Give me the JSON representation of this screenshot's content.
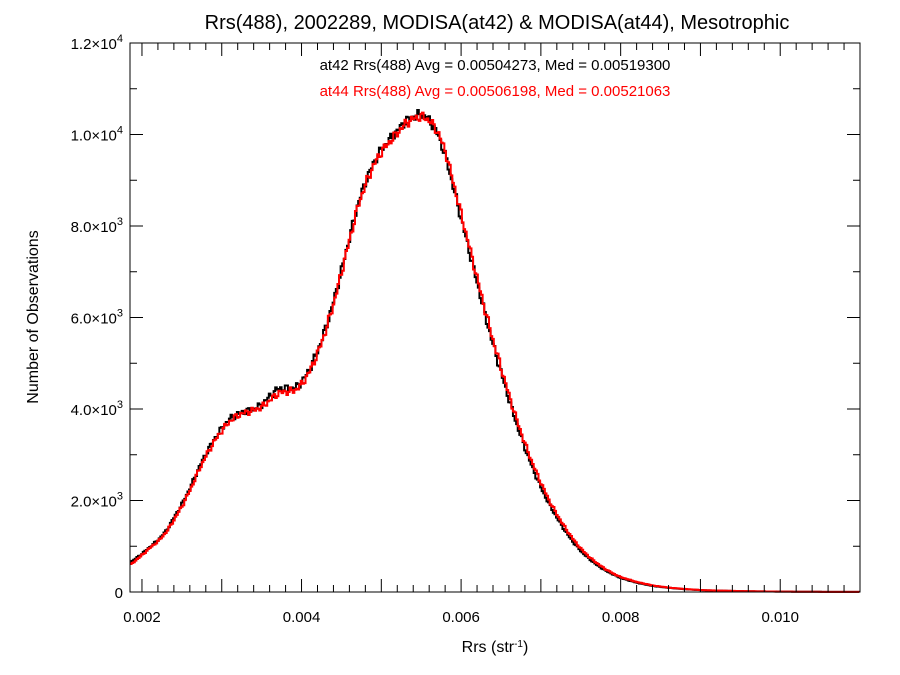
{
  "chart_data": {
    "type": "line",
    "title": "Rrs(488), 2002289, MODISA(at42) & MODISA(at44), Mesotrophic",
    "xlabel": "Rrs (str",
    "xlabel_sup": "-1",
    "xlabel_close": ")",
    "ylabel": "Number of Observations",
    "xlim": [
      0.00185,
      0.011
    ],
    "ylim": [
      0,
      12000
    ],
    "x_ticks": [
      {
        "value": 0.002,
        "label": "0.002"
      },
      {
        "value": 0.004,
        "label": "0.004"
      },
      {
        "value": 0.006,
        "label": "0.006"
      },
      {
        "value": 0.008,
        "label": "0.008"
      },
      {
        "value": 0.01,
        "label": "0.010"
      }
    ],
    "y_ticks": [
      {
        "value": 0,
        "mant": "0",
        "exp": ""
      },
      {
        "value": 2000,
        "mant": "2.0×10",
        "exp": "3"
      },
      {
        "value": 4000,
        "mant": "4.0×10",
        "exp": "3"
      },
      {
        "value": 6000,
        "mant": "6.0×10",
        "exp": "3"
      },
      {
        "value": 8000,
        "mant": "8.0×10",
        "exp": "3"
      },
      {
        "value": 10000,
        "mant": "1.0×10",
        "exp": "4"
      },
      {
        "value": 12000,
        "mant": "1.2×10",
        "exp": "4"
      }
    ],
    "annotations": [
      {
        "text": "at42 Rrs(488) Avg = 0.00504273, Med = 0.00519300",
        "color": "#000000"
      },
      {
        "text": "at44 Rrs(488) Avg = 0.00506198, Med = 0.00521063",
        "color": "#ff0000"
      }
    ],
    "series": [
      {
        "color": "#000000",
        "style": "step",
        "points": [
          [
            0.00185,
            650
          ],
          [
            0.002,
            850
          ],
          [
            0.0021,
            1000
          ],
          [
            0.0022,
            1150
          ],
          [
            0.0023,
            1350
          ],
          [
            0.0024,
            1650
          ],
          [
            0.0025,
            1950
          ],
          [
            0.0026,
            2300
          ],
          [
            0.0027,
            2700
          ],
          [
            0.0028,
            3050
          ],
          [
            0.0029,
            3350
          ],
          [
            0.003,
            3600
          ],
          [
            0.0031,
            3800
          ],
          [
            0.0032,
            3900
          ],
          [
            0.0033,
            3950
          ],
          [
            0.0034,
            4000
          ],
          [
            0.0035,
            4100
          ],
          [
            0.0036,
            4300
          ],
          [
            0.0037,
            4450
          ],
          [
            0.0038,
            4450
          ],
          [
            0.0039,
            4450
          ],
          [
            0.004,
            4600
          ],
          [
            0.0041,
            4900
          ],
          [
            0.0042,
            5300
          ],
          [
            0.0043,
            5800
          ],
          [
            0.0044,
            6400
          ],
          [
            0.0045,
            7100
          ],
          [
            0.0046,
            7800
          ],
          [
            0.0047,
            8500
          ],
          [
            0.0048,
            9000
          ],
          [
            0.0049,
            9400
          ],
          [
            0.005,
            9700
          ],
          [
            0.0051,
            9900
          ],
          [
            0.0052,
            10100
          ],
          [
            0.0053,
            10300
          ],
          [
            0.0054,
            10400
          ],
          [
            0.0055,
            10450
          ],
          [
            0.0056,
            10300
          ],
          [
            0.0057,
            10000
          ],
          [
            0.0058,
            9500
          ],
          [
            0.0059,
            8800
          ],
          [
            0.006,
            8100
          ],
          [
            0.0061,
            7400
          ],
          [
            0.0062,
            6700
          ],
          [
            0.0063,
            6000
          ],
          [
            0.0064,
            5350
          ],
          [
            0.0065,
            4750
          ],
          [
            0.0066,
            4150
          ],
          [
            0.0067,
            3600
          ],
          [
            0.0068,
            3100
          ],
          [
            0.0069,
            2650
          ],
          [
            0.007,
            2250
          ],
          [
            0.0071,
            1900
          ],
          [
            0.0072,
            1600
          ],
          [
            0.0073,
            1320
          ],
          [
            0.0074,
            1080
          ],
          [
            0.0075,
            880
          ],
          [
            0.0076,
            720
          ],
          [
            0.0077,
            580
          ],
          [
            0.0078,
            470
          ],
          [
            0.0079,
            380
          ],
          [
            0.008,
            300
          ],
          [
            0.0082,
            200
          ],
          [
            0.0084,
            130
          ],
          [
            0.0086,
            90
          ],
          [
            0.0088,
            60
          ],
          [
            0.009,
            40
          ],
          [
            0.0095,
            18
          ],
          [
            0.01,
            8
          ],
          [
            0.0105,
            4
          ],
          [
            0.011,
            2
          ]
        ]
      },
      {
        "color": "#ff0000",
        "style": "step",
        "points": [
          [
            0.00185,
            600
          ],
          [
            0.002,
            820
          ],
          [
            0.0021,
            980
          ],
          [
            0.0022,
            1120
          ],
          [
            0.0023,
            1320
          ],
          [
            0.0024,
            1600
          ],
          [
            0.0025,
            1900
          ],
          [
            0.0026,
            2250
          ],
          [
            0.0027,
            2650
          ],
          [
            0.0028,
            3000
          ],
          [
            0.0029,
            3300
          ],
          [
            0.003,
            3550
          ],
          [
            0.0031,
            3750
          ],
          [
            0.0032,
            3870
          ],
          [
            0.0033,
            3930
          ],
          [
            0.0034,
            3980
          ],
          [
            0.0035,
            4050
          ],
          [
            0.0036,
            4200
          ],
          [
            0.0037,
            4350
          ],
          [
            0.0038,
            4380
          ],
          [
            0.0039,
            4400
          ],
          [
            0.004,
            4550
          ],
          [
            0.0041,
            4850
          ],
          [
            0.0042,
            5250
          ],
          [
            0.0043,
            5750
          ],
          [
            0.0044,
            6350
          ],
          [
            0.0045,
            7050
          ],
          [
            0.0046,
            7750
          ],
          [
            0.0047,
            8450
          ],
          [
            0.0048,
            8950
          ],
          [
            0.0049,
            9350
          ],
          [
            0.005,
            9650
          ],
          [
            0.0051,
            9850
          ],
          [
            0.0052,
            10050
          ],
          [
            0.0053,
            10250
          ],
          [
            0.0054,
            10350
          ],
          [
            0.0055,
            10400
          ],
          [
            0.0056,
            10300
          ],
          [
            0.0057,
            10050
          ],
          [
            0.0058,
            9600
          ],
          [
            0.0059,
            8900
          ],
          [
            0.006,
            8200
          ],
          [
            0.0061,
            7500
          ],
          [
            0.0062,
            6800
          ],
          [
            0.0063,
            6100
          ],
          [
            0.0064,
            5450
          ],
          [
            0.0065,
            4850
          ],
          [
            0.0066,
            4250
          ],
          [
            0.0067,
            3700
          ],
          [
            0.0068,
            3200
          ],
          [
            0.0069,
            2750
          ],
          [
            0.007,
            2350
          ],
          [
            0.0071,
            1980
          ],
          [
            0.0072,
            1670
          ],
          [
            0.0073,
            1390
          ],
          [
            0.0074,
            1140
          ],
          [
            0.0075,
            930
          ],
          [
            0.0076,
            760
          ],
          [
            0.0077,
            620
          ],
          [
            0.0078,
            500
          ],
          [
            0.0079,
            400
          ],
          [
            0.008,
            320
          ],
          [
            0.0082,
            215
          ],
          [
            0.0084,
            140
          ],
          [
            0.0086,
            95
          ],
          [
            0.0088,
            65
          ],
          [
            0.009,
            42
          ],
          [
            0.0095,
            19
          ],
          [
            0.01,
            8
          ],
          [
            0.0105,
            4
          ],
          [
            0.011,
            2
          ]
        ]
      }
    ]
  }
}
